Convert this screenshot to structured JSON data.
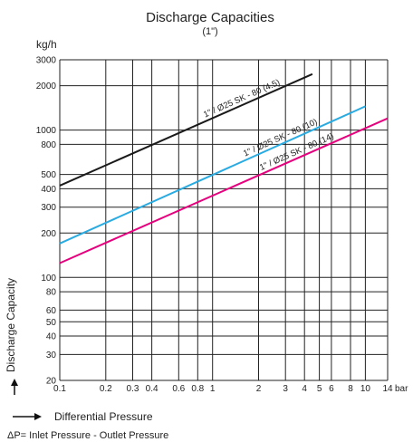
{
  "chart_data": {
    "type": "line",
    "title": "Discharge Capacities",
    "subtitle": "(1\")",
    "y_unit": "kg/h",
    "x_unit": "bar",
    "ylabel": "Discharge Capacity",
    "xlabel": "Differential Pressure",
    "note": "ΔP= Inlet Pressure - Outlet Pressure",
    "x_scale": "log",
    "y_scale": "log",
    "xlim": [
      0.1,
      14
    ],
    "ylim": [
      20,
      3000
    ],
    "grid": true,
    "x_ticks": [
      0.1,
      0.2,
      0.3,
      0.4,
      0.6,
      0.8,
      1,
      2,
      3,
      4,
      5,
      6,
      8,
      10,
      14
    ],
    "x_tick_labels": [
      "0.1",
      "0.2",
      "0.3",
      "0.4",
      "0.6",
      "0.8",
      "1",
      "2",
      "3",
      "4",
      "5",
      "6",
      "8",
      "10",
      "14"
    ],
    "y_ticks": [
      20,
      30,
      40,
      50,
      60,
      80,
      100,
      200,
      300,
      400,
      500,
      800,
      1000,
      2000,
      3000
    ],
    "y_tick_labels": [
      "20",
      "30",
      "40",
      "50",
      "60",
      "80",
      "100",
      "200",
      "300",
      "400",
      "500",
      "800",
      "1000",
      "2000",
      "3000"
    ],
    "series": [
      {
        "name": "1\" / Ø25 SK - 80 (4.5)",
        "color": "#1a1a1a",
        "x": [
          0.1,
          4.5
        ],
        "y": [
          420,
          2400
        ]
      },
      {
        "name": "1\" / Ø25 SK - 80 (10)",
        "color": "#29abe2",
        "x": [
          0.1,
          10
        ],
        "y": [
          170,
          1450
        ]
      },
      {
        "name": "1\" / Ø25 SK - 80 (14)",
        "color": "#e6007e",
        "x": [
          0.1,
          14
        ],
        "y": [
          125,
          1200
        ]
      }
    ]
  }
}
